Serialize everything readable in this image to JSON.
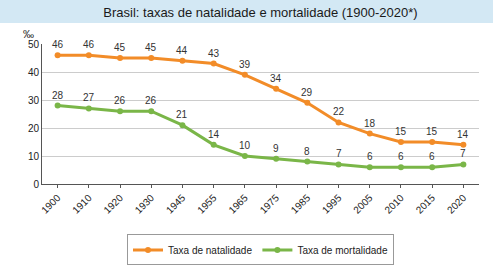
{
  "chart_data": {
    "type": "line",
    "title": "Brasil: taxas de natalidade e mortalidade (1900-2020*)",
    "y_label": "‰",
    "categories": [
      "1900",
      "1910",
      "1920",
      "1930",
      "1945",
      "1955",
      "1965",
      "1975",
      "1985",
      "1995",
      "2005",
      "2010",
      "2015",
      "2020"
    ],
    "series": [
      {
        "name": "Taxa de natalidade",
        "color": "#f28c28",
        "values": [
          46,
          46,
          45,
          45,
          44,
          43,
          39,
          34,
          29,
          22,
          18,
          15,
          15,
          14
        ]
      },
      {
        "name": "Taxa de mortalidade",
        "color": "#7ab648",
        "values": [
          28,
          27,
          26,
          26,
          21,
          14,
          10,
          9,
          8,
          7,
          6,
          6,
          6,
          7
        ]
      }
    ],
    "ylim": [
      0,
      50
    ],
    "yticks": [
      0,
      10,
      20,
      30,
      40,
      50
    ],
    "grid": true,
    "legend": "bottom",
    "data_labels": true,
    "marker": "circle"
  }
}
